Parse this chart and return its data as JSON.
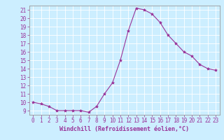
{
  "x": [
    0,
    1,
    2,
    3,
    4,
    5,
    6,
    7,
    8,
    9,
    10,
    11,
    12,
    13,
    14,
    15,
    16,
    17,
    18,
    19,
    20,
    21,
    22,
    23
  ],
  "y": [
    10,
    9.8,
    9.5,
    9,
    9,
    9,
    9,
    8.8,
    9.5,
    11,
    12.3,
    15,
    18.5,
    21.2,
    21,
    20.5,
    19.5,
    18,
    17,
    16,
    15.5,
    14.5,
    14,
    13.8
  ],
  "line_color": "#993399",
  "marker": "*",
  "marker_size": 3,
  "bg_color": "#cceeff",
  "grid_color": "#ffffff",
  "xlabel": "Windchill (Refroidissement éolien,°C)",
  "xlabel_color": "#993399",
  "tick_color": "#993399",
  "spine_color": "#999999",
  "ylim": [
    8.5,
    21.5
  ],
  "xlim": [
    -0.5,
    23.5
  ],
  "yticks": [
    9,
    10,
    11,
    12,
    13,
    14,
    15,
    16,
    17,
    18,
    19,
    20,
    21
  ],
  "xticks": [
    0,
    1,
    2,
    3,
    4,
    5,
    6,
    7,
    8,
    9,
    10,
    11,
    12,
    13,
    14,
    15,
    16,
    17,
    18,
    19,
    20,
    21,
    22,
    23
  ],
  "tick_fontsize": 5.5,
  "xlabel_fontsize": 6.0
}
